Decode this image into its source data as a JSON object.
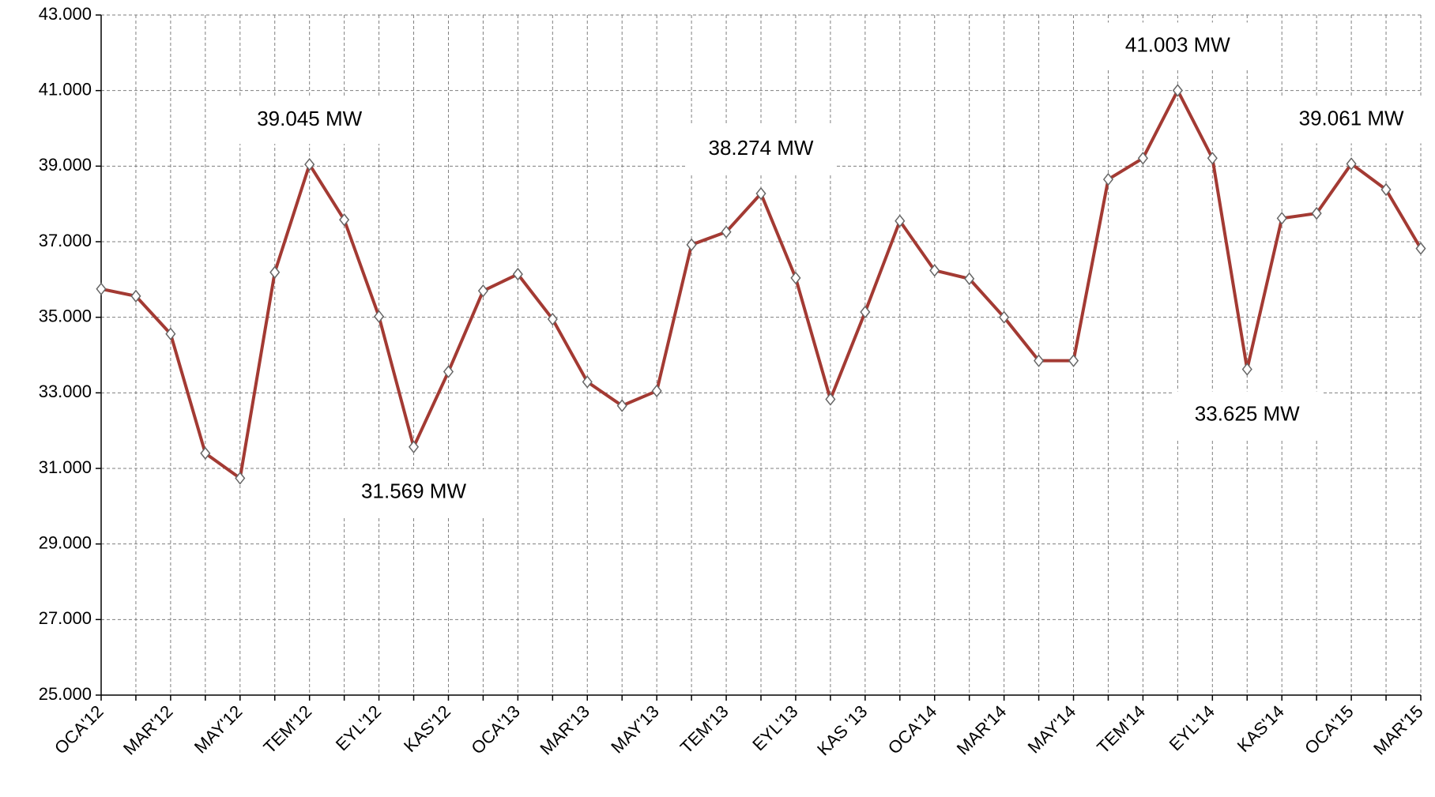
{
  "chart_data": {
    "type": "line",
    "categories": [
      "OCA'12",
      null,
      "MAR'12",
      null,
      "MAY'12",
      null,
      "TEM'12",
      null,
      "EYL'12",
      null,
      "KAS'12",
      null,
      "OCA'13",
      null,
      "MAR'13",
      null,
      "MAY'13",
      null,
      "TEM'13",
      null,
      "EYL'13",
      null,
      "KAS '13",
      null,
      "OCA'14",
      null,
      "MAR'14",
      null,
      "MAY'14",
      null,
      "TEM'14",
      null,
      "EYL'14",
      null,
      "KAS'14",
      null,
      "OCA'15",
      null,
      "MAR'15"
    ],
    "series": [
      {
        "color": "#a33a33",
        "values": [
          35750,
          35560,
          34560,
          31400,
          30740,
          36190,
          39045,
          37580,
          35020,
          31569,
          33560,
          35700,
          36140,
          34950,
          33290,
          32660,
          33050,
          36920,
          37260,
          38274,
          36040,
          32830,
          35140,
          37550,
          36240,
          36020,
          35000,
          33850,
          33850,
          38650,
          39210,
          41003,
          39210,
          33625,
          37620,
          37750,
          39061,
          38380,
          36820
        ],
        "value_labels": [
          null,
          null,
          null,
          null,
          null,
          null,
          "39.045 MW",
          null,
          null,
          "31.569 MW",
          null,
          null,
          null,
          null,
          null,
          null,
          null,
          null,
          null,
          "38.274 MW",
          null,
          null,
          null,
          null,
          null,
          null,
          null,
          null,
          null,
          null,
          null,
          "41.003 MW",
          null,
          "33.625 MW",
          null,
          null,
          "39.061 MW",
          null,
          null
        ]
      }
    ],
    "ylim": [
      25000,
      43000
    ],
    "yticks": [
      {
        "value": 25000,
        "label": "25.000"
      },
      {
        "value": 27000,
        "label": "27.000"
      },
      {
        "value": 29000,
        "label": "29.000"
      },
      {
        "value": 31000,
        "label": "31.000"
      },
      {
        "value": 33000,
        "label": "33.000"
      },
      {
        "value": 35000,
        "label": "35.000"
      },
      {
        "value": 37000,
        "label": "37.000"
      },
      {
        "value": 39000,
        "label": "39.000"
      },
      {
        "value": 41000,
        "label": "41.000"
      },
      {
        "value": 43000,
        "label": "43.000"
      }
    ],
    "grid": true
  }
}
